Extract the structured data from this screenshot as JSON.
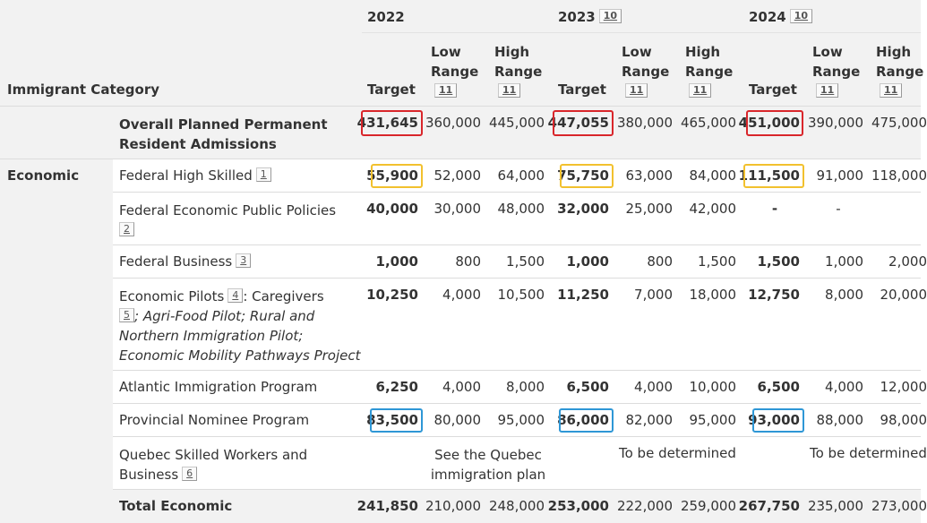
{
  "header": {
    "category_label": "Immigrant Category",
    "years": [
      {
        "year": "2022",
        "footnote": ""
      },
      {
        "year": "2023",
        "footnote": "10"
      },
      {
        "year": "2024",
        "footnote": "10"
      }
    ],
    "col_target": "Target",
    "col_low_1": "Low",
    "col_low_2": "Range",
    "col_high_1": "High",
    "col_high_2": "Range",
    "range_footnote": "11"
  },
  "overall": {
    "label_1": "Overall Planned Permanent",
    "label_2": "Resident Admissions",
    "values": [
      "431,645",
      "360,000",
      "445,000",
      "447,055",
      "380,000",
      "465,000",
      "451,000",
      "390,000",
      "475,000"
    ]
  },
  "economic": {
    "group_label": "Economic",
    "rows": [
      {
        "label": "Federal High Skilled",
        "footnote": "1",
        "values": [
          "55,900",
          "52,000",
          "64,000",
          "75,750",
          "63,000",
          "84,000",
          "111,500",
          "91,000",
          "118,000"
        ]
      },
      {
        "label": "Federal Economic Public Policies",
        "footnote": "2",
        "values": [
          "40,000",
          "30,000",
          "48,000",
          "32,000",
          "25,000",
          "42,000",
          "-",
          "-",
          ""
        ]
      },
      {
        "label": "Federal Business",
        "footnote": "3",
        "values": [
          "1,000",
          "800",
          "1,500",
          "1,000",
          "800",
          "1,500",
          "1,500",
          "1,000",
          "2,000"
        ]
      },
      {
        "label": "Economic Pilots",
        "footnote": "4",
        "suffix": ": Caregivers",
        "footnote2": "5",
        "italic_1": "; Agri-Food Pilot; Rural and",
        "italic_2": "Northern Immigration Pilot;",
        "italic_3": "Economic Mobility Pathways Project",
        "values": [
          "10,250",
          "4,000",
          "10,500",
          "11,250",
          "7,000",
          "18,000",
          "12,750",
          "8,000",
          "20,000"
        ]
      },
      {
        "label": "Atlantic Immigration Program",
        "values": [
          "6,250",
          "4,000",
          "8,000",
          "6,500",
          "4,000",
          "10,000",
          "6,500",
          "4,000",
          "12,000"
        ]
      },
      {
        "label": "Provincial Nominee Program",
        "values": [
          "83,500",
          "80,000",
          "95,000",
          "86,000",
          "82,000",
          "95,000",
          "93,000",
          "88,000",
          "98,000"
        ]
      },
      {
        "label_1": "Quebec Skilled Workers and",
        "label_2": "Business",
        "footnote": "6",
        "note_2022_1": "See the Quebec",
        "note_2022_2": "immigration plan",
        "note_2023": "To be determined",
        "note_2024": "To be determined"
      }
    ],
    "total": {
      "label": "Total Economic",
      "values": [
        "241,850",
        "210,000",
        "248,000",
        "253,000",
        "222,000",
        "259,000",
        "267,750",
        "235,000",
        "273,000"
      ]
    }
  },
  "highlight_colors": {
    "overall": "#d9262b",
    "federal_high_skilled": "#f2c12e",
    "provincial_nominee": "#2e97d6"
  }
}
